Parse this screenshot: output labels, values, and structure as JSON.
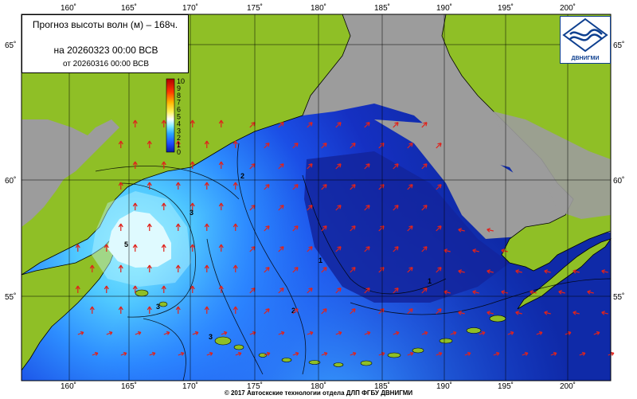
{
  "title": {
    "line1": "Прогноз высоты волн (м) – 168ч.",
    "line2": "на 20260323 00:00 ВСВ",
    "line3": "от 20260316 00:00 ВСВ"
  },
  "lon_ticks": [
    "160˚",
    "165˚",
    "170˚",
    "175˚",
    "180˚",
    "185˚",
    "190˚",
    "195˚",
    "200˚"
  ],
  "lat_ticks": [
    "65˚",
    "60˚",
    "55˚"
  ],
  "legend": {
    "levels": [
      "10",
      "9",
      "8",
      "7",
      "6",
      "5",
      "4",
      "3",
      "2",
      "1",
      "0"
    ]
  },
  "isolines": [
    "3",
    "3",
    "2",
    "1",
    "1",
    "2",
    "3",
    "5"
  ],
  "logo_text": "ДВНИГМИ",
  "footer": "© 2017 Автоскские технологии отдела ДЛП ФГБУ ДВНИГМИ",
  "colors": {
    "land": "#8fbf26",
    "ice": "#9c9c9c",
    "deep": "#0d1f9e",
    "sea": "#1e5bff",
    "light": "#74e7ff",
    "white": "#ffffff"
  }
}
